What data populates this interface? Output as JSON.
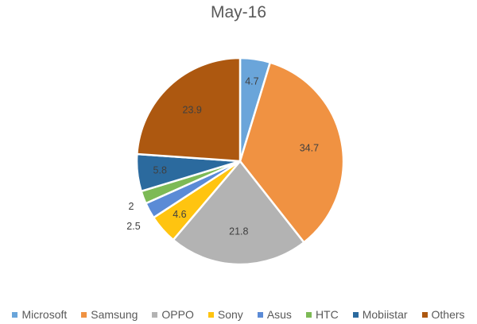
{
  "chart_data": {
    "type": "pie",
    "title": "May-16",
    "categories": [
      "Microsoft",
      "Samsung",
      "OPPO",
      "Sony",
      "Asus",
      "HTC",
      "Mobiistar",
      "Others"
    ],
    "values": [
      4.7,
      34.7,
      21.8,
      4.6,
      2.5,
      2,
      5.8,
      23.9
    ],
    "colors": [
      "#6AA5DA",
      "#F09242",
      "#B3B3B3",
      "#FFC410",
      "#5B8BD6",
      "#7DBA56",
      "#2B6A9E",
      "#AD5810"
    ],
    "data_labels": [
      "4.7",
      "34.7",
      "21.8",
      "4.6",
      "2.5",
      "2",
      "5.8",
      "23.9"
    ],
    "start_angle_deg": 0,
    "direction": "clockwise",
    "legend_position": "bottom"
  },
  "title": "May-16",
  "legend": [
    {
      "label": "Microsoft",
      "color": "#6AA5DA"
    },
    {
      "label": "Samsung",
      "color": "#F09242"
    },
    {
      "label": "OPPO",
      "color": "#B3B3B3"
    },
    {
      "label": "Sony",
      "color": "#FFC410"
    },
    {
      "label": "Asus",
      "color": "#5B8BD6"
    },
    {
      "label": "HTC",
      "color": "#7DBA56"
    },
    {
      "label": "Mobiistar",
      "color": "#2B6A9E"
    },
    {
      "label": "Others",
      "color": "#AD5810"
    }
  ]
}
